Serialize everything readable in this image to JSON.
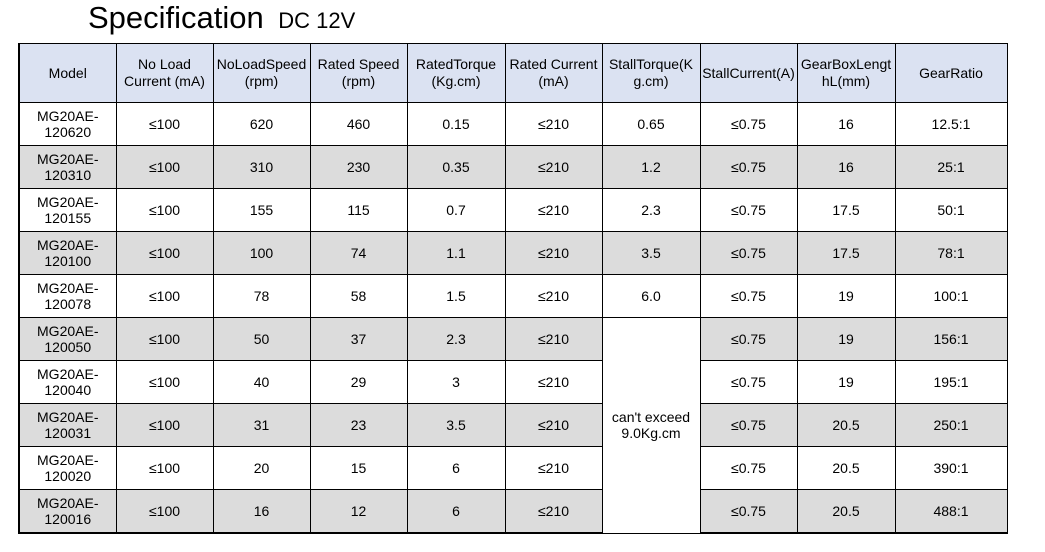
{
  "title": {
    "main": "Specification",
    "sub": "DC 12V"
  },
  "table": {
    "headers": [
      "Model",
      "No Load\nCurrent   (mA)",
      "NoLoadSpeed\n(rpm)",
      "Rated Speed\n(rpm)",
      "RatedTorque\n(Kg.cm)",
      "Rated Current\n(mA)",
      "StallTorque(K\ng.cm)",
      "StallCurrent(A)",
      "GearBoxLengt\nhL(mm)",
      "GearRatio"
    ],
    "rows": [
      [
        "MG20AE-\n120620",
        "≤100",
        "620",
        "460",
        "0.15",
        "≤210",
        "0.65",
        "≤0.75",
        "16",
        "12.5:1"
      ],
      [
        "MG20AE-\n120310",
        "≤100",
        "310",
        "230",
        "0.35",
        "≤210",
        "1.2",
        "≤0.75",
        "16",
        "25:1"
      ],
      [
        "MG20AE-\n120155",
        "≤100",
        "155",
        "115",
        "0.7",
        "≤210",
        "2.3",
        "≤0.75",
        "17.5",
        "50:1"
      ],
      [
        "MG20AE-\n120100",
        "≤100",
        "100",
        "74",
        "1.1",
        "≤210",
        "3.5",
        "≤0.75",
        "17.5",
        "78:1"
      ],
      [
        "MG20AE-\n120078",
        "≤100",
        "78",
        "58",
        "1.5",
        "≤210",
        "6.0",
        "≤0.75",
        "19",
        "100:1"
      ],
      [
        "MG20AE-\n120050",
        "≤100",
        "50",
        "37",
        "2.3",
        "≤210",
        "",
        "≤0.75",
        "19",
        "156:1"
      ],
      [
        "MG20AE-\n120040",
        "≤100",
        "40",
        "29",
        "3",
        "≤210",
        "",
        "≤0.75",
        "19",
        "195:1"
      ],
      [
        "MG20AE-\n120031",
        "≤100",
        "31",
        "23",
        "3.5",
        "≤210",
        "",
        "≤0.75",
        "20.5",
        "250:1"
      ],
      [
        "MG20AE-\n120020",
        "≤100",
        "20",
        "15",
        "6",
        "≤210",
        "",
        "≤0.75",
        "20.5",
        "390:1"
      ],
      [
        "MG20AE-\n120016",
        "≤100",
        "16",
        "12",
        "6",
        "≤210",
        "",
        "≤0.75",
        "20.5",
        "488:1"
      ]
    ],
    "stall_torque_merged_note": "can't exceed\n9.0Kg.cm",
    "colors": {
      "header_bg": "#dbe2f2",
      "alt_row_bg": "#dcdcdc",
      "border": "#000000"
    }
  }
}
